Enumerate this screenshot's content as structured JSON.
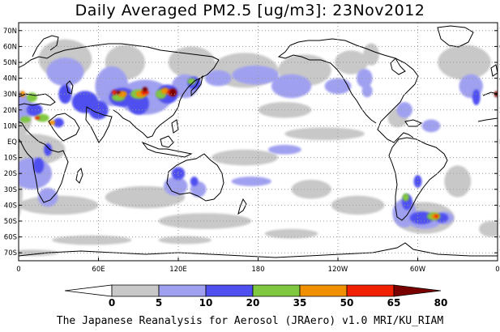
{
  "title": "Daily Averaged PM2.5 [ug/m3]: 23Nov2012",
  "footer": "The Japanese Reanalysis for Aerosol (JRAero) v1.0 MRI/KU_RIAM",
  "map": {
    "projection": "equirectangular",
    "lon_range": [
      0,
      360
    ],
    "lat_range": [
      -75,
      75
    ],
    "lat_ticks": [
      {
        "value": 70,
        "label": "70N"
      },
      {
        "value": 60,
        "label": "60N"
      },
      {
        "value": 50,
        "label": "50N"
      },
      {
        "value": 40,
        "label": "40N"
      },
      {
        "value": 30,
        "label": "30N"
      },
      {
        "value": 20,
        "label": "20N"
      },
      {
        "value": 10,
        "label": "10N"
      },
      {
        "value": 0,
        "label": "EQ"
      },
      {
        "value": -10,
        "label": "10S"
      },
      {
        "value": -20,
        "label": "20S"
      },
      {
        "value": -30,
        "label": "30S"
      },
      {
        "value": -40,
        "label": "40S"
      },
      {
        "value": -50,
        "label": "50S"
      },
      {
        "value": -60,
        "label": "60S"
      },
      {
        "value": -70,
        "label": "70S"
      }
    ],
    "lon_ticks": [
      {
        "value": 0,
        "label": "0"
      },
      {
        "value": 60,
        "label": "60E"
      },
      {
        "value": 120,
        "label": "120E"
      },
      {
        "value": 180,
        "label": "180"
      },
      {
        "value": 240,
        "label": "120W"
      },
      {
        "value": 300,
        "label": "60W"
      },
      {
        "value": 360,
        "label": "0"
      }
    ],
    "grid": "dotted",
    "ocean_color": "#ffffff",
    "coastline_color": "#000000"
  },
  "colorbar": {
    "levels": [
      "0",
      "5",
      "10",
      "20",
      "35",
      "50",
      "65",
      "80"
    ],
    "colors": [
      "#ffffff",
      "#c8c8c8",
      "#a0a0f0",
      "#5050f0",
      "#80c840",
      "#f09000",
      "#f02000",
      "#7a0000"
    ]
  },
  "fields": [
    {
      "level": 1,
      "blobs": [
        [
          -5,
          15,
          30,
          28
        ],
        [
          35,
          52,
          40,
          25
        ],
        [
          80,
          50,
          30,
          22
        ],
        [
          130,
          50,
          35,
          20
        ],
        [
          170,
          45,
          50,
          22
        ],
        [
          215,
          45,
          40,
          20
        ],
        [
          250,
          50,
          25,
          15
        ],
        [
          335,
          50,
          40,
          22
        ],
        [
          10,
          -5,
          50,
          20
        ],
        [
          -2,
          -30,
          10,
          40
        ],
        [
          30,
          -40,
          60,
          12
        ],
        [
          95,
          -35,
          60,
          14
        ],
        [
          140,
          -50,
          70,
          10
        ],
        [
          220,
          -30,
          30,
          12
        ],
        [
          255,
          -40,
          40,
          12
        ],
        [
          305,
          -48,
          45,
          20
        ],
        [
          330,
          -25,
          20,
          20
        ],
        [
          170,
          -10,
          50,
          10
        ],
        [
          200,
          20,
          40,
          10
        ],
        [
          230,
          5,
          60,
          8
        ],
        [
          265,
          55,
          12,
          14
        ],
        [
          285,
          15,
          15,
          12
        ],
        [
          355,
          -55,
          18,
          10
        ],
        [
          55,
          -62,
          60,
          6
        ],
        [
          125,
          -62,
          40,
          5
        ],
        [
          205,
          -58,
          40,
          6
        ],
        [
          10,
          -70,
          40,
          4
        ]
      ]
    },
    {
      "level": 2,
      "blobs": [
        [
          -2,
          22,
          25,
          20
        ],
        [
          35,
          44,
          28,
          18
        ],
        [
          70,
          35,
          25,
          25
        ],
        [
          95,
          28,
          40,
          22
        ],
        [
          125,
          35,
          20,
          15
        ],
        [
          150,
          40,
          20,
          10
        ],
        [
          178,
          42,
          35,
          12
        ],
        [
          205,
          35,
          30,
          15
        ],
        [
          240,
          35,
          20,
          10
        ],
        [
          262,
          32,
          8,
          8
        ],
        [
          290,
          20,
          12,
          10
        ],
        [
          310,
          10,
          14,
          8
        ],
        [
          340,
          35,
          18,
          15
        ],
        [
          10,
          -20,
          30,
          20
        ],
        [
          22,
          -35,
          15,
          12
        ],
        [
          118,
          -28,
          18,
          12
        ],
        [
          135,
          -30,
          12,
          10
        ],
        [
          290,
          -45,
          18,
          18
        ],
        [
          305,
          -50,
          25,
          10
        ],
        [
          320,
          -48,
          14,
          8
        ],
        [
          175,
          -25,
          30,
          6
        ],
        [
          200,
          -5,
          25,
          6
        ],
        [
          260,
          40,
          12,
          12
        ]
      ]
    },
    {
      "level": 3,
      "blobs": [
        [
          12,
          20,
          12,
          8
        ],
        [
          35,
          30,
          10,
          12
        ],
        [
          50,
          25,
          20,
          14
        ],
        [
          60,
          20,
          15,
          12
        ],
        [
          78,
          28,
          20,
          12
        ],
        [
          90,
          24,
          16,
          14
        ],
        [
          112,
          30,
          16,
          12
        ],
        [
          132,
          37,
          10,
          8
        ],
        [
          30,
          12,
          8,
          6
        ],
        [
          15,
          -15,
          8,
          10
        ],
        [
          22,
          -5,
          6,
          8
        ],
        [
          120,
          -20,
          10,
          8
        ],
        [
          132,
          -25,
          6,
          6
        ],
        [
          303,
          -48,
          18,
          8
        ],
        [
          318,
          -48,
          10,
          6
        ],
        [
          292,
          -38,
          8,
          10
        ],
        [
          300,
          -25,
          6,
          8
        ],
        [
          344,
          28,
          6,
          10
        ]
      ]
    },
    {
      "level": 4,
      "blobs": [
        [
          5,
          14,
          8,
          4
        ],
        [
          18,
          15,
          10,
          5
        ],
        [
          10,
          28,
          8,
          6
        ],
        [
          75,
          28,
          10,
          5
        ],
        [
          90,
          30,
          12,
          6
        ],
        [
          107,
          30,
          8,
          6
        ],
        [
          130,
          38,
          6,
          4
        ],
        [
          312,
          -47,
          10,
          5
        ],
        [
          291,
          -35,
          5,
          5
        ]
      ]
    },
    {
      "level": 5,
      "blobs": [
        [
          3,
          30,
          4,
          4
        ],
        [
          25,
          12,
          5,
          3
        ],
        [
          78,
          30,
          7,
          4
        ],
        [
          92,
          30,
          8,
          4
        ],
        [
          110,
          32,
          6,
          4
        ],
        [
          313,
          -47,
          6,
          3
        ]
      ]
    },
    {
      "level": 6,
      "blobs": [
        [
          14,
          15,
          4,
          2
        ],
        [
          72,
          31,
          4,
          3
        ],
        [
          95,
          31,
          6,
          3
        ],
        [
          115,
          31,
          7,
          4
        ],
        [
          314,
          -47,
          3,
          2
        ]
      ]
    },
    {
      "level": 7,
      "blobs": [
        [
          75,
          31,
          3,
          2
        ],
        [
          95,
          33,
          4,
          3
        ],
        [
          116,
          31,
          5,
          5
        ],
        [
          359,
          30,
          3,
          4
        ]
      ]
    }
  ]
}
